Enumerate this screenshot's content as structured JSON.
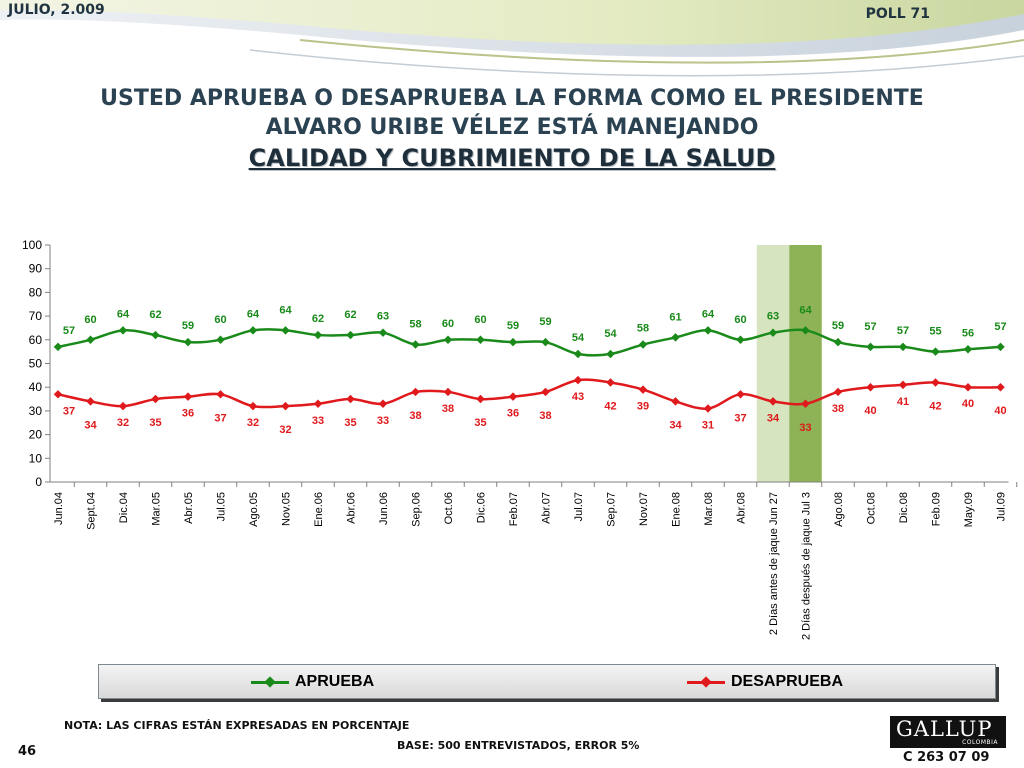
{
  "header": {
    "date": "JULIO, 2.009",
    "poll": "POLL 71"
  },
  "title": {
    "line1": "USTED APRUEBA O DESAPRUEBA LA FORMA COMO EL PRESIDENTE",
    "line2": "ALVARO URIBE VÉLEZ ESTÁ MANEJANDO",
    "line3": "CALIDAD Y CUBRIMIENTO DE LA SALUD"
  },
  "chart_data": {
    "type": "line",
    "title": "CALIDAD Y CUBRIMIENTO DE LA SALUD",
    "xlabel": "",
    "ylabel": "",
    "ylim": [
      0,
      100
    ],
    "yticks": [
      0,
      10,
      20,
      30,
      40,
      50,
      60,
      70,
      80,
      90,
      100
    ],
    "categories": [
      "Jun.04",
      "Sept.04",
      "Dic.04",
      "Mar.05",
      "Abr.05",
      "Jul.05",
      "Ago.05",
      "Nov.05",
      "Ene.06",
      "Abr.06",
      "Jun.06",
      "Sep.06",
      "Oct.06",
      "Dic.06",
      "Feb.07",
      "Abr.07",
      "Jul.07",
      "Sep.07",
      "Nov.07",
      "Ene.08",
      "Mar.08",
      "Abr.08",
      "2 Días antes de jaque Jun 27",
      "2 Días después de jaque Jul 3",
      "Ago.08",
      "Oct.08",
      "Dic.08",
      "Feb.09",
      "May.09",
      "Jul.09"
    ],
    "series": [
      {
        "name": "APRUEBA",
        "color": "#1a8a1a",
        "values": [
          57,
          60,
          64,
          62,
          59,
          60,
          64,
          64,
          62,
          62,
          63,
          58,
          60,
          60,
          59,
          59,
          54,
          54,
          58,
          61,
          64,
          60,
          63,
          64,
          59,
          57,
          57,
          55,
          56,
          57
        ]
      },
      {
        "name": "DESAPRUEBA",
        "color": "#e0191c",
        "values": [
          37,
          34,
          32,
          35,
          36,
          37,
          32,
          32,
          33,
          35,
          33,
          38,
          38,
          35,
          36,
          38,
          43,
          42,
          39,
          34,
          31,
          37,
          34,
          33,
          38,
          40,
          41,
          42,
          40,
          40
        ]
      }
    ],
    "highlight_bands": [
      {
        "category": "2 Días antes de jaque Jun 27",
        "color": "#d6e4bf"
      },
      {
        "category": "2 Días después de jaque Jul 3",
        "color": "#8db356"
      }
    ],
    "legend_position": "bottom"
  },
  "legend": {
    "approve_label": "APRUEBA",
    "disapprove_label": "DESAPRUEBA",
    "approve_color": "#1a8a1a",
    "disapprove_color": "#e0191c"
  },
  "footer": {
    "note": "NOTA: LAS CIFRAS ESTÁN EXPRESADAS EN PORCENTAJE",
    "base": "BASE: 500 ENTREVISTADOS, ERROR 5%",
    "page": "46",
    "logo": "GALLUP",
    "logo_sub": "COLOMBIA",
    "code": "C 263 07 09"
  }
}
